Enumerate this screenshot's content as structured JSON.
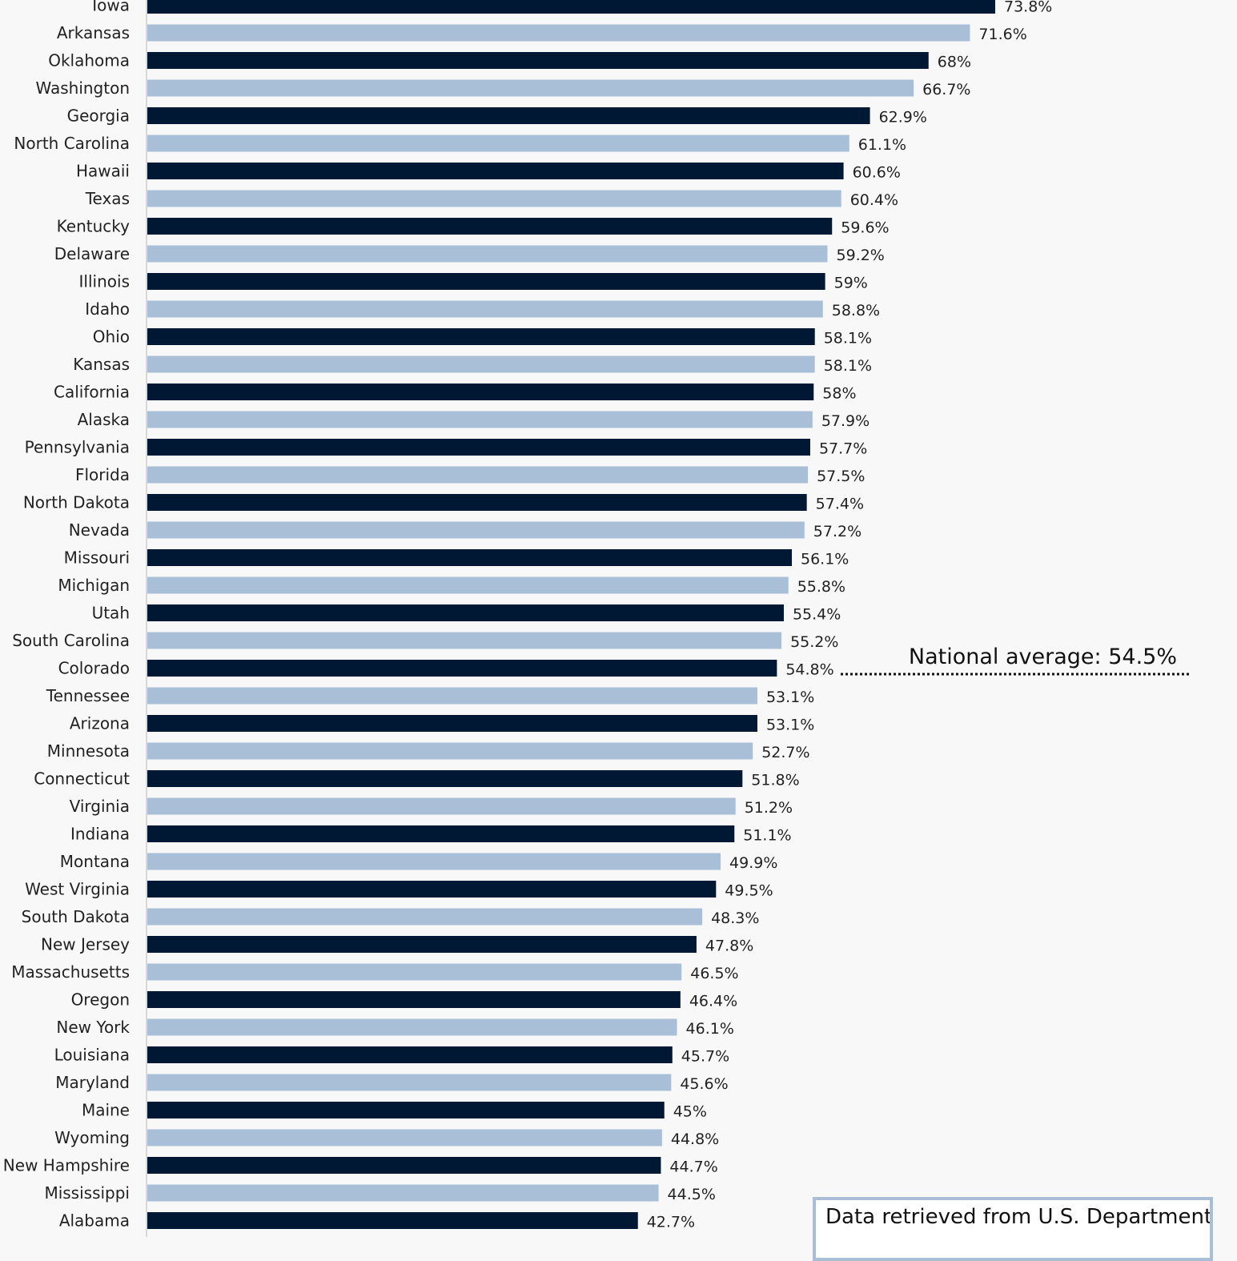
{
  "chart_data": {
    "type": "bar",
    "orientation": "horizontal",
    "categories": [
      "Iowa",
      "Arkansas",
      "Oklahoma",
      "Washington",
      "Georgia",
      "North Carolina",
      "Hawaii",
      "Texas",
      "Kentucky",
      "Delaware",
      "Illinois",
      "Idaho",
      "Ohio",
      "Kansas",
      "California",
      "Alaska",
      "Pennsylvania",
      "Florida",
      "North Dakota",
      "Nevada",
      "Missouri",
      "Michigan",
      "Utah",
      "South Carolina",
      "Colorado",
      "Tennessee",
      "Arizona",
      "Minnesota",
      "Connecticut",
      "Virginia",
      "Indiana",
      "Montana",
      "West Virginia",
      "South Dakota",
      "New Jersey",
      "Massachusetts",
      "Oregon",
      "New York",
      "Louisiana",
      "Maryland",
      "Maine",
      "Wyoming",
      "New Hampshire",
      "Mississippi",
      "Alabama"
    ],
    "values": [
      73.8,
      71.6,
      68,
      66.7,
      62.9,
      61.1,
      60.6,
      60.4,
      59.6,
      59.2,
      59,
      58.8,
      58.1,
      58.1,
      58,
      57.9,
      57.7,
      57.5,
      57.4,
      57.2,
      56.1,
      55.8,
      55.4,
      55.2,
      54.8,
      53.1,
      53.1,
      52.7,
      51.8,
      51.2,
      51.1,
      49.9,
      49.5,
      48.3,
      47.8,
      46.5,
      46.4,
      46.1,
      45.7,
      45.6,
      45,
      44.8,
      44.7,
      44.5,
      42.7
    ],
    "data_labels": [
      "73.8%",
      "71.6%",
      "68%",
      "66.7%",
      "62.9%",
      "61.1%",
      "60.6%",
      "60.4%",
      "59.6%",
      "59.2%",
      "59%",
      "58.8%",
      "58.1%",
      "58.1%",
      "58%",
      "57.9%",
      "57.7%",
      "57.5%",
      "57.4%",
      "57.2%",
      "56.1%",
      "55.8%",
      "55.4%",
      "55.2%",
      "54.8%",
      "53.1%",
      "53.1%",
      "52.7%",
      "51.8%",
      "51.2%",
      "51.1%",
      "49.9%",
      "49.5%",
      "48.3%",
      "47.8%",
      "46.5%",
      "46.4%",
      "46.1%",
      "45.7%",
      "45.6%",
      "45%",
      "44.8%",
      "44.7%",
      "44.5%",
      "42.7%"
    ],
    "colors": [
      "#001833",
      "#a9bfd8"
    ],
    "reference_line": {
      "value": 54.5,
      "label": "National average: 54.5%"
    },
    "xlim": [
      0,
      100
    ],
    "grid": false
  },
  "source_note": "Data retrieved from U.S. Department of"
}
